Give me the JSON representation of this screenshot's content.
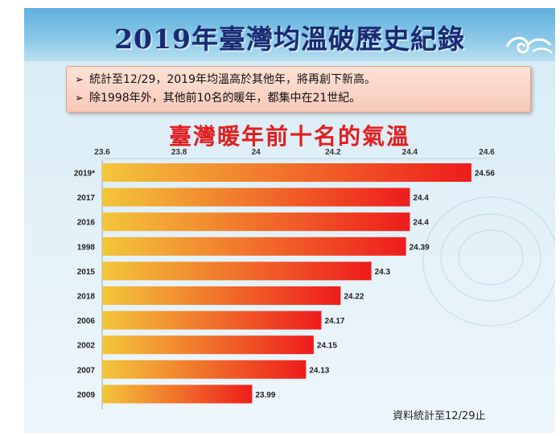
{
  "header": {
    "title": "2019年臺灣均溫破歷史紀錄"
  },
  "notes": [
    "統計至12/29，2019年均溫高於其他年，將再創下新高。",
    "除1998年外，其他前10名的暖年，都集中在21世紀。"
  ],
  "footnote": "資料統計至12/29止",
  "colors": {
    "bar_start": "#f3c63a",
    "bar_end": "#ee1c1c",
    "title_blue": "#1a2a72",
    "title_red": "#e21d1d"
  },
  "icons": [
    "bullet-arrow-icon",
    "cloud-swirl-icon"
  ],
  "chart_data": {
    "type": "bar",
    "orientation": "horizontal",
    "title": "臺灣暖年前十名的氣溫",
    "xlabel": "",
    "ylabel": "",
    "xlim": [
      23.6,
      24.6
    ],
    "ticks": [
      "23.6",
      "23.8",
      "24",
      "24.2",
      "24.4",
      "24.6"
    ],
    "tick_values": [
      23.6,
      23.8,
      24.0,
      24.2,
      24.4,
      24.6
    ],
    "axis_position": "top",
    "grid": false,
    "legend": "none",
    "categories": [
      "2019*",
      "2017",
      "2016",
      "1998",
      "2015",
      "2018",
      "2006",
      "2002",
      "2007",
      "2009"
    ],
    "values": [
      24.56,
      24.4,
      24.4,
      24.39,
      24.3,
      24.22,
      24.17,
      24.15,
      24.13,
      23.99
    ],
    "value_labels": [
      "24.56",
      "24.4",
      "24.4",
      "24.39",
      "24.3",
      "24.22",
      "24.17",
      "24.15",
      "24.13",
      "23.99"
    ]
  }
}
